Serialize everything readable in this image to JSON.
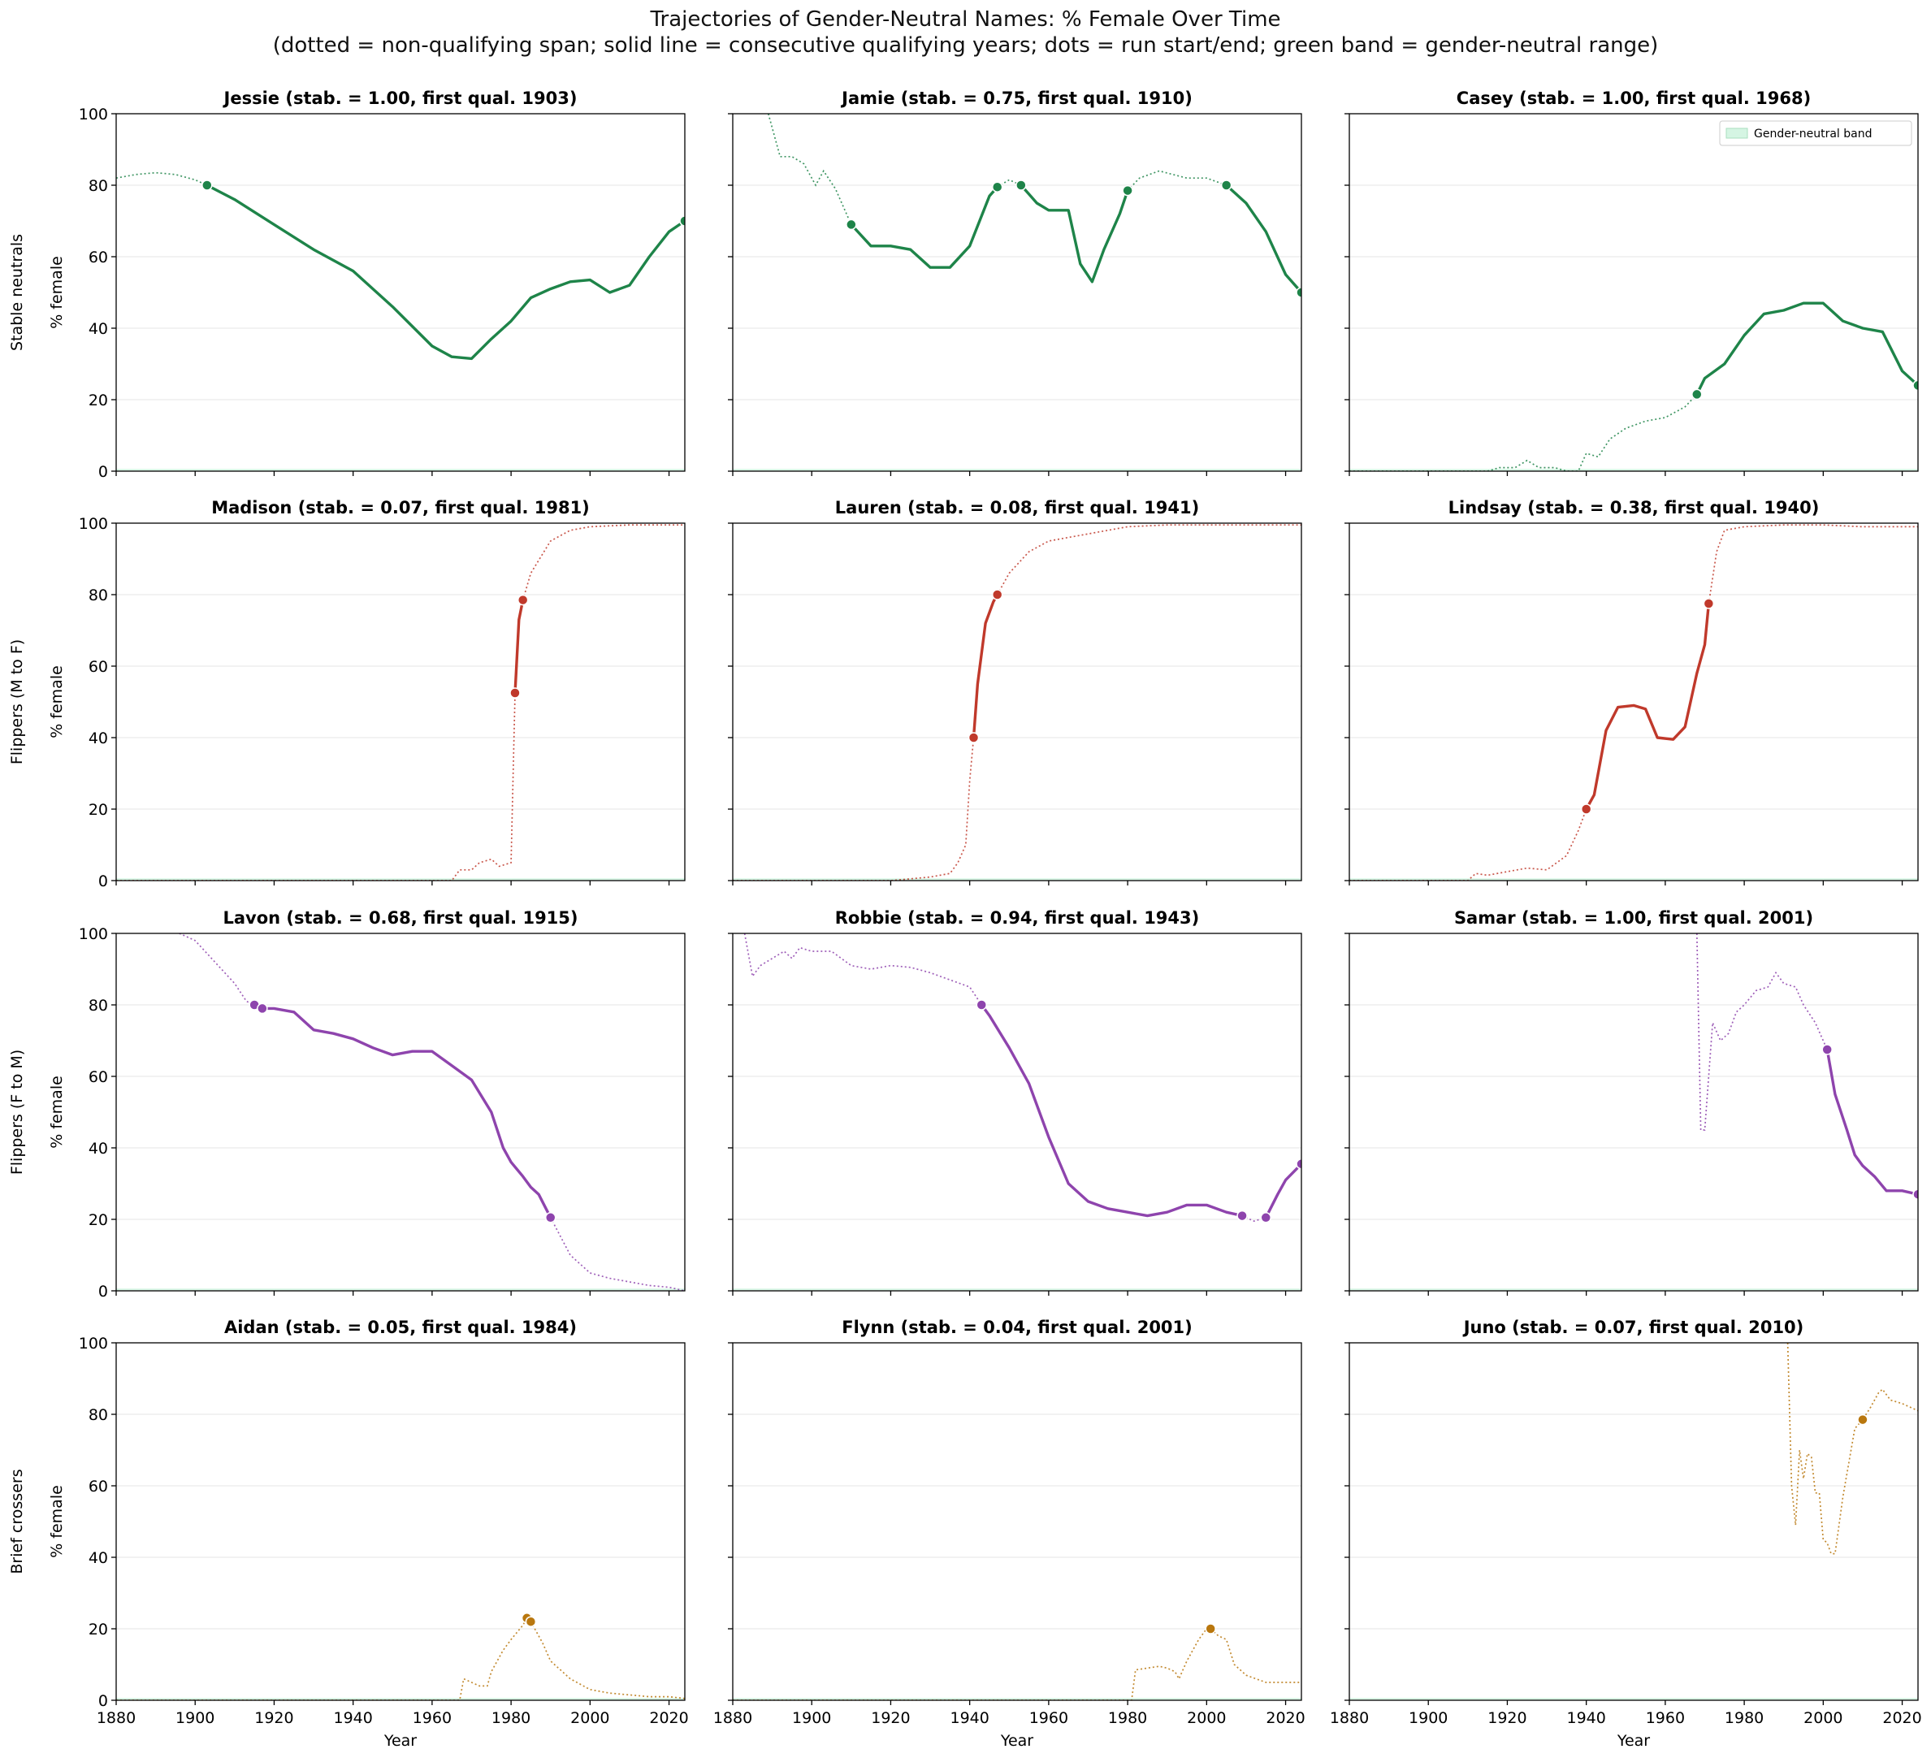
{
  "figure": {
    "title": "Trajectories of Gender-Neutral Names: % Female Over Time",
    "subtitle": "(dotted = non-qualifying span; solid line = consecutive qualifying years; dots = run start/end; green band = gender-neutral range)"
  },
  "colors": {
    "stable": "#1e8449",
    "m_to_f": "#c0392b",
    "f_to_m": "#8e44ad",
    "brief": "#b9770e",
    "band": "#d5f5e3",
    "grid": "#e6e6e6"
  },
  "chart_data": [
    {
      "type": "line",
      "name": "Jessie",
      "title": "Jessie  (stab. = 1.00, first qual. 1903)",
      "group": "stable",
      "row_label": "Stable neutrals",
      "xlabel": "",
      "ylabel": "% female",
      "xlim": [
        1880,
        2024
      ],
      "ylim": [
        0,
        100
      ],
      "x": [
        1880,
        1885,
        1890,
        1895,
        1900,
        1903,
        1910,
        1920,
        1930,
        1940,
        1950,
        1960,
        1965,
        1970,
        1975,
        1980,
        1985,
        1990,
        1995,
        2000,
        2005,
        2010,
        2015,
        2020,
        2024
      ],
      "y": [
        82,
        83,
        83.5,
        83,
        81.5,
        80,
        76,
        69,
        62,
        56,
        46,
        35,
        32,
        31.5,
        37,
        42,
        48.5,
        51,
        53,
        53.5,
        50,
        52,
        60,
        67,
        70
      ],
      "segments": [
        {
          "style": "dotted",
          "x0": 1880,
          "x1": 1903
        },
        {
          "style": "solid",
          "x0": 1903,
          "x1": 2024
        }
      ],
      "markers": [
        {
          "x": 1903,
          "y": 80
        },
        {
          "x": 2024,
          "y": 70
        }
      ]
    },
    {
      "type": "line",
      "name": "Jamie",
      "title": "Jamie  (stab. = 0.75, first qual. 1910)",
      "group": "stable",
      "row_label": "Stable neutrals",
      "xlabel": "",
      "ylabel": "% female",
      "xlim": [
        1880,
        2024
      ],
      "ylim": [
        0,
        100
      ],
      "x": [
        1889,
        1892,
        1895,
        1898,
        1901,
        1903,
        1906,
        1908,
        1910,
        1915,
        1920,
        1925,
        1930,
        1935,
        1940,
        1945,
        1947,
        1950,
        1953,
        1957,
        1960,
        1965,
        1968,
        1971,
        1974,
        1978,
        1980,
        1983,
        1988,
        1995,
        2000,
        2005,
        2010,
        2015,
        2020,
        2024
      ],
      "y": [
        100,
        88,
        88,
        86,
        80,
        84,
        79,
        74,
        69,
        63,
        63,
        62,
        57,
        57,
        63,
        77,
        79.5,
        81.5,
        80,
        75,
        73,
        73,
        58,
        53,
        62,
        72,
        78.5,
        82,
        84,
        82,
        82,
        80,
        75,
        67,
        55,
        50
      ],
      "segments": [
        {
          "style": "dotted",
          "x0": 1889,
          "x1": 1910
        },
        {
          "style": "solid",
          "x0": 1910,
          "x1": 1947
        },
        {
          "style": "dotted",
          "x0": 1947,
          "x1": 1953
        },
        {
          "style": "solid",
          "x0": 1953,
          "x1": 1980
        },
        {
          "style": "dotted",
          "x0": 1980,
          "x1": 2005
        },
        {
          "style": "solid",
          "x0": 2005,
          "x1": 2024
        }
      ],
      "markers": [
        {
          "x": 1910,
          "y": 69
        },
        {
          "x": 1947,
          "y": 79.5
        },
        {
          "x": 1953,
          "y": 80
        },
        {
          "x": 1980,
          "y": 78.5
        },
        {
          "x": 2005,
          "y": 80
        },
        {
          "x": 2024,
          "y": 50
        }
      ]
    },
    {
      "type": "line",
      "name": "Casey",
      "title": "Casey  (stab. = 1.00, first qual. 1968)",
      "group": "stable",
      "row_label": "Stable neutrals",
      "xlabel": "",
      "ylabel": "% female",
      "xlim": [
        1880,
        2024
      ],
      "ylim": [
        0,
        100
      ],
      "x": [
        1880,
        1915,
        1918,
        1922,
        1925,
        1928,
        1932,
        1935,
        1938,
        1940,
        1943,
        1946,
        1950,
        1955,
        1960,
        1965,
        1968,
        1970,
        1975,
        1980,
        1985,
        1990,
        1995,
        2000,
        2005,
        2010,
        2015,
        2020,
        2024
      ],
      "y": [
        0,
        0,
        1,
        1,
        3,
        1,
        1,
        0,
        0,
        5,
        4,
        9,
        12,
        14,
        15,
        18,
        21.5,
        26,
        30,
        38,
        44,
        45,
        47,
        47,
        42,
        40,
        39,
        28,
        24
      ],
      "segments": [
        {
          "style": "dotted",
          "x0": 1880,
          "x1": 1968
        },
        {
          "style": "solid",
          "x0": 1968,
          "x1": 2024
        }
      ],
      "markers": [
        {
          "x": 1968,
          "y": 21.5
        },
        {
          "x": 2024,
          "y": 24
        }
      ],
      "legend": {
        "label": "Gender-neutral band",
        "position": "upper right"
      }
    },
    {
      "type": "line",
      "name": "Madison",
      "title": "Madison  (stab. = 0.07, first qual. 1981)",
      "group": "m_to_f",
      "row_label": "Flippers (M to F)",
      "xlabel": "",
      "ylabel": "% female",
      "xlim": [
        1880,
        2024
      ],
      "ylim": [
        0,
        100
      ],
      "x": [
        1880,
        1960,
        1965,
        1967,
        1970,
        1972,
        1975,
        1977,
        1980,
        1981,
        1982,
        1983,
        1985,
        1990,
        1995,
        2000,
        2010,
        2024
      ],
      "y": [
        0,
        0,
        0,
        3,
        3,
        5,
        6,
        4,
        5,
        52.5,
        73,
        78.5,
        86,
        95,
        98,
        99,
        99.5,
        99.5
      ],
      "segments": [
        {
          "style": "dotted",
          "x0": 1880,
          "x1": 1981
        },
        {
          "style": "solid",
          "x0": 1981,
          "x1": 1983
        },
        {
          "style": "dotted",
          "x0": 1983,
          "x1": 2024
        }
      ],
      "markers": [
        {
          "x": 1981,
          "y": 52.5
        },
        {
          "x": 1983,
          "y": 78.5
        }
      ]
    },
    {
      "type": "line",
      "name": "Lauren",
      "title": "Lauren  (stab. = 0.08, first qual. 1941)",
      "group": "m_to_f",
      "row_label": "Flippers (M to F)",
      "xlabel": "",
      "ylabel": "% female",
      "xlim": [
        1880,
        2024
      ],
      "ylim": [
        0,
        100
      ],
      "x": [
        1880,
        1920,
        1925,
        1930,
        1935,
        1937,
        1939,
        1940,
        1941,
        1942,
        1944,
        1946,
        1947,
        1950,
        1955,
        1960,
        1970,
        1980,
        1990,
        2000,
        2024
      ],
      "y": [
        0,
        0,
        0.5,
        1,
        2,
        5,
        10,
        28,
        40,
        55,
        72,
        78,
        80,
        86,
        92,
        95,
        97,
        99,
        99.5,
        99.5,
        99.5
      ],
      "segments": [
        {
          "style": "dotted",
          "x0": 1880,
          "x1": 1941
        },
        {
          "style": "solid",
          "x0": 1941,
          "x1": 1947
        },
        {
          "style": "dotted",
          "x0": 1947,
          "x1": 2024
        }
      ],
      "markers": [
        {
          "x": 1941,
          "y": 40
        },
        {
          "x": 1947,
          "y": 80
        }
      ]
    },
    {
      "type": "line",
      "name": "Lindsay",
      "title": "Lindsay  (stab. = 0.38, first qual. 1940)",
      "group": "m_to_f",
      "row_label": "Flippers (M to F)",
      "xlabel": "",
      "ylabel": "% female",
      "xlim": [
        1880,
        2024
      ],
      "ylim": [
        0,
        100
      ],
      "x": [
        1880,
        1910,
        1912,
        1915,
        1920,
        1925,
        1930,
        1935,
        1938,
        1940,
        1942,
        1945,
        1948,
        1952,
        1955,
        1958,
        1962,
        1965,
        1968,
        1970,
        1971,
        1973,
        1975,
        1980,
        1990,
        2000,
        2010,
        2024
      ],
      "y": [
        0,
        0,
        2,
        1.5,
        2.5,
        3.5,
        3,
        7,
        14,
        20,
        24,
        42,
        48.5,
        49,
        48,
        40,
        39.5,
        43,
        58,
        66,
        77.5,
        92,
        98,
        99,
        99.5,
        99.5,
        99,
        99
      ],
      "segments": [
        {
          "style": "dotted",
          "x0": 1880,
          "x1": 1940
        },
        {
          "style": "solid",
          "x0": 1940,
          "x1": 1971
        },
        {
          "style": "dotted",
          "x0": 1971,
          "x1": 2024
        }
      ],
      "markers": [
        {
          "x": 1940,
          "y": 20
        },
        {
          "x": 1971,
          "y": 77.5
        }
      ]
    },
    {
      "type": "line",
      "name": "Lavon",
      "title": "Lavon  (stab. = 0.68, first qual. 1915)",
      "group": "f_to_m",
      "row_label": "Flippers (F to M)",
      "xlabel": "",
      "ylabel": "% female",
      "xlim": [
        1880,
        2024
      ],
      "ylim": [
        0,
        100
      ],
      "x": [
        1896,
        1900,
        1905,
        1910,
        1913,
        1915,
        1917,
        1920,
        1925,
        1930,
        1935,
        1940,
        1945,
        1950,
        1955,
        1960,
        1965,
        1970,
        1975,
        1978,
        1980,
        1983,
        1985,
        1987,
        1990,
        1995,
        2000,
        2005,
        2010,
        2015,
        2020,
        2024
      ],
      "y": [
        100,
        98,
        92,
        86,
        81,
        80,
        79,
        79,
        78,
        73,
        72,
        70.5,
        68,
        66,
        67,
        67,
        63,
        59,
        50,
        40,
        36,
        32,
        29,
        27,
        20.5,
        10,
        5,
        3.5,
        2.5,
        1.5,
        1,
        0
      ],
      "segments": [
        {
          "style": "dotted",
          "x0": 1896,
          "x1": 1915
        },
        {
          "style": "solid",
          "x0": 1917,
          "x1": 1990
        },
        {
          "style": "dotted",
          "x0": 1990,
          "x1": 2024
        }
      ],
      "markers": [
        {
          "x": 1915,
          "y": 80
        },
        {
          "x": 1917,
          "y": 79
        },
        {
          "x": 1990,
          "y": 20.5
        }
      ]
    },
    {
      "type": "line",
      "name": "Robbie",
      "title": "Robbie  (stab. = 0.94, first qual. 1943)",
      "group": "f_to_m",
      "row_label": "Flippers (F to M)",
      "xlabel": "",
      "ylabel": "% female",
      "xlim": [
        1880,
        2024
      ],
      "ylim": [
        0,
        100
      ],
      "x": [
        1883,
        1885,
        1887,
        1890,
        1893,
        1895,
        1897,
        1900,
        1905,
        1910,
        1915,
        1920,
        1925,
        1930,
        1935,
        1940,
        1943,
        1945,
        1950,
        1955,
        1960,
        1965,
        1970,
        1975,
        1980,
        1985,
        1990,
        1995,
        2000,
        2005,
        2009,
        2012,
        2015,
        2018,
        2020,
        2024
      ],
      "y": [
        100,
        88,
        91,
        93,
        95,
        93,
        96,
        95,
        95,
        91,
        90,
        91,
        90.5,
        89,
        87,
        85,
        80,
        77,
        68,
        58,
        43,
        30,
        25,
        23,
        22,
        21,
        22,
        24,
        24,
        22,
        21,
        19.5,
        20.5,
        27,
        31,
        35.5
      ],
      "segments": [
        {
          "style": "dotted",
          "x0": 1883,
          "x1": 1943
        },
        {
          "style": "solid",
          "x0": 1943,
          "x1": 2009
        },
        {
          "style": "dotted",
          "x0": 2009,
          "x1": 2015
        },
        {
          "style": "solid",
          "x0": 2015,
          "x1": 2024
        }
      ],
      "markers": [
        {
          "x": 1943,
          "y": 80
        },
        {
          "x": 2009,
          "y": 21
        },
        {
          "x": 2015,
          "y": 20.5
        },
        {
          "x": 2024,
          "y": 35.5
        }
      ]
    },
    {
      "type": "line",
      "name": "Samar",
      "title": "Samar  (stab. = 1.00, first qual. 2001)",
      "group": "f_to_m",
      "row_label": "Flippers (F to M)",
      "xlabel": "",
      "ylabel": "% female",
      "xlim": [
        1880,
        2024
      ],
      "ylim": [
        0,
        100
      ],
      "x": [
        1968,
        1969,
        1970,
        1972,
        1974,
        1976,
        1978,
        1980,
        1983,
        1986,
        1988,
        1990,
        1993,
        1995,
        1998,
        2000,
        2001,
        2003,
        2006,
        2008,
        2010,
        2013,
        2016,
        2020,
        2024
      ],
      "y": [
        100,
        45,
        45,
        75,
        70,
        72,
        78,
        80,
        84,
        85,
        89,
        86,
        85,
        80,
        75,
        70,
        67.5,
        55,
        45,
        38,
        35,
        32,
        28,
        28,
        27
      ],
      "segments": [
        {
          "style": "dotted",
          "x0": 1968,
          "x1": 2001
        },
        {
          "style": "solid",
          "x0": 2001,
          "x1": 2024
        }
      ],
      "markers": [
        {
          "x": 2001,
          "y": 67.5
        },
        {
          "x": 2024,
          "y": 27
        }
      ]
    },
    {
      "type": "line",
      "name": "Aidan",
      "title": "Aidan  (stab. = 0.05, first qual. 1984)",
      "group": "brief",
      "row_label": "Brief crossers",
      "xlabel": "Year",
      "ylabel": "% female",
      "xlim": [
        1880,
        2024
      ],
      "ylim": [
        0,
        100
      ],
      "x": [
        1880,
        1967,
        1968,
        1970,
        1972,
        1974,
        1975,
        1978,
        1980,
        1983,
        1984,
        1985,
        1988,
        1990,
        1995,
        2000,
        2005,
        2010,
        2015,
        2020,
        2024
      ],
      "y": [
        0,
        0,
        6,
        5,
        4,
        4,
        8,
        14,
        17,
        21,
        23,
        22,
        16,
        11,
        6,
        3,
        2,
        1.5,
        1,
        1,
        0.5
      ],
      "segments": [
        {
          "style": "dotted",
          "x0": 1880,
          "x1": 2024
        }
      ],
      "markers": [
        {
          "x": 1984,
          "y": 23
        },
        {
          "x": 1985,
          "y": 22
        }
      ]
    },
    {
      "type": "line",
      "name": "Flynn",
      "title": "Flynn  (stab. = 0.04, first qual. 2001)",
      "group": "brief",
      "row_label": "Brief crossers",
      "xlabel": "Year",
      "ylabel": "% female",
      "xlim": [
        1880,
        2024
      ],
      "ylim": [
        0,
        100
      ],
      "x": [
        1880,
        1981,
        1982,
        1985,
        1988,
        1990,
        1992,
        1993,
        1995,
        1998,
        2000,
        2001,
        2003,
        2005,
        2007,
        2010,
        2015,
        2020,
        2024
      ],
      "y": [
        0,
        0,
        8.5,
        9,
        9.5,
        9,
        8,
        6,
        11,
        17,
        20,
        20,
        18,
        17,
        10,
        7,
        5,
        5,
        5
      ],
      "segments": [
        {
          "style": "dotted",
          "x0": 1880,
          "x1": 2024
        }
      ],
      "markers": [
        {
          "x": 2001,
          "y": 20
        }
      ]
    },
    {
      "type": "line",
      "name": "Juno",
      "title": "Juno  (stab. = 0.07, first qual. 2010)",
      "group": "brief",
      "row_label": "Brief crossers",
      "xlabel": "Year",
      "ylabel": "% female",
      "xlim": [
        1880,
        2024
      ],
      "ylim": [
        0,
        100
      ],
      "x": [
        1991,
        1992,
        1993,
        1994,
        1995,
        1996,
        1997,
        1998,
        1999,
        2000,
        2001,
        2002,
        2003,
        2005,
        2008,
        2010,
        2012,
        2014,
        2015,
        2017,
        2020,
        2024
      ],
      "y": [
        100,
        60,
        49,
        70,
        62,
        69,
        68,
        58,
        58,
        45,
        44,
        41,
        41,
        57,
        76,
        78.5,
        82,
        86,
        87,
        84,
        83,
        81
      ],
      "segments": [
        {
          "style": "dotted",
          "x0": 1991,
          "x1": 2024
        }
      ],
      "markers": [
        {
          "x": 2010,
          "y": 78.5
        }
      ]
    }
  ],
  "axes": {
    "xticks": [
      1880,
      1900,
      1920,
      1940,
      1960,
      1980,
      2000,
      2020
    ],
    "yticks": [
      0,
      20,
      40,
      60,
      80,
      100
    ]
  }
}
